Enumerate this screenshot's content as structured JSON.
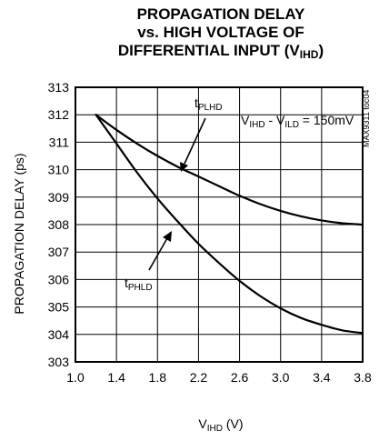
{
  "chart_data": {
    "type": "line",
    "title_lines": [
      "PROPAGATION DELAY",
      "vs. HIGH VOLTAGE OF",
      "DIFFERENTIAL INPUT (V"
    ],
    "title_sub": "IHD",
    "title_tail": ")",
    "xlabel": {
      "main": "V",
      "sub": "IHD",
      "unit": " (V)"
    },
    "ylabel": "PROPAGATION DELAY (ps)",
    "xlim": [
      1.0,
      3.8
    ],
    "ylim": [
      303,
      313
    ],
    "x_ticks": [
      "1.0",
      "1.4",
      "1.8",
      "2.2",
      "2.6",
      "3.0",
      "3.4",
      "3.8"
    ],
    "y_ticks": [
      "303",
      "304",
      "305",
      "306",
      "307",
      "308",
      "309",
      "310",
      "311",
      "312",
      "313"
    ],
    "grid": true,
    "condition": {
      "v1": "V",
      "s1": "IHD",
      "mid": " - V",
      "s2": "ILD",
      "tail": " = 150mV"
    },
    "figure_code": "MAX9311 toc04",
    "series": [
      {
        "name": "t",
        "name_sub": "PLHD",
        "x": [
          1.2,
          1.4,
          1.6,
          1.8,
          2.0,
          2.2,
          2.4,
          2.6,
          2.8,
          3.0,
          3.2,
          3.4,
          3.6,
          3.8
        ],
        "values": [
          312.0,
          311.45,
          310.95,
          310.5,
          310.1,
          309.75,
          309.4,
          309.05,
          308.75,
          308.5,
          308.3,
          308.15,
          308.05,
          308.0
        ]
      },
      {
        "name": "t",
        "name_sub": "PHLD",
        "x": [
          1.2,
          1.4,
          1.6,
          1.8,
          2.0,
          2.2,
          2.4,
          2.6,
          2.8,
          3.0,
          3.2,
          3.4,
          3.6,
          3.8
        ],
        "values": [
          312.0,
          310.95,
          309.9,
          308.95,
          308.1,
          307.3,
          306.6,
          305.95,
          305.4,
          304.95,
          304.6,
          304.35,
          304.15,
          304.05
        ]
      }
    ]
  }
}
